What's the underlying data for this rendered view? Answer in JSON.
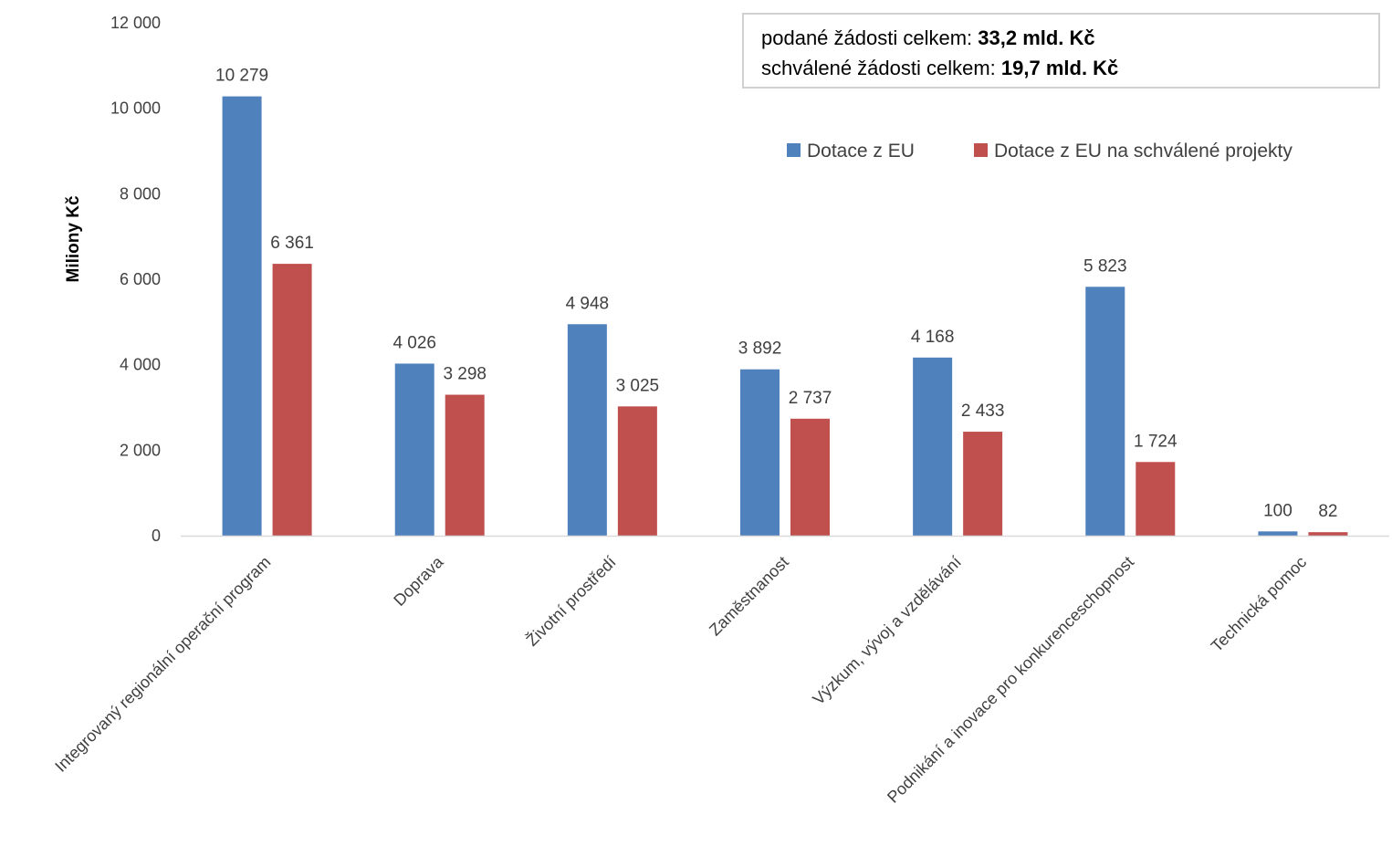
{
  "chart_data": {
    "type": "bar",
    "ylabel": "Miliony Kč",
    "ylim": [
      0,
      12000
    ],
    "yticks": [
      0,
      2000,
      4000,
      6000,
      8000,
      10000,
      12000
    ],
    "ytick_labels": [
      "0",
      "2 000",
      "4 000",
      "6 000",
      "8 000",
      "10 000",
      "12 000"
    ],
    "categories": [
      "Integrovaný regionální operační program",
      "Doprava",
      "Životní prostředí",
      "Zaměstnanost",
      "Výzkum, vývoj a vzdělávání",
      "Podnikání a inovace pro konkurenceschopnost",
      "Technická pomoc"
    ],
    "series": [
      {
        "name": "Dotace z EU",
        "color": "#4f81bd",
        "values": [
          10279,
          4026,
          4948,
          3892,
          4168,
          5823,
          100
        ],
        "labels": [
          "10 279",
          "4 026",
          "4 948",
          "3 892",
          "4 168",
          "5 823",
          "100"
        ]
      },
      {
        "name": "Dotace z EU na schválené projekty",
        "color": "#c0504d",
        "values": [
          6361,
          3298,
          3025,
          2737,
          2433,
          1724,
          82
        ],
        "labels": [
          "6 361",
          "3 298",
          "3 025",
          "2 737",
          "2 433",
          "1 724",
          "82"
        ]
      }
    ],
    "legend_position": "top-right",
    "grid": false
  },
  "summary": {
    "line1_prefix": "podané žádosti celkem: ",
    "line1_value": "33,2 mld. Kč",
    "line2_prefix": "schválené žádosti celkem: ",
    "line2_value": "19,7 mld. Kč"
  }
}
